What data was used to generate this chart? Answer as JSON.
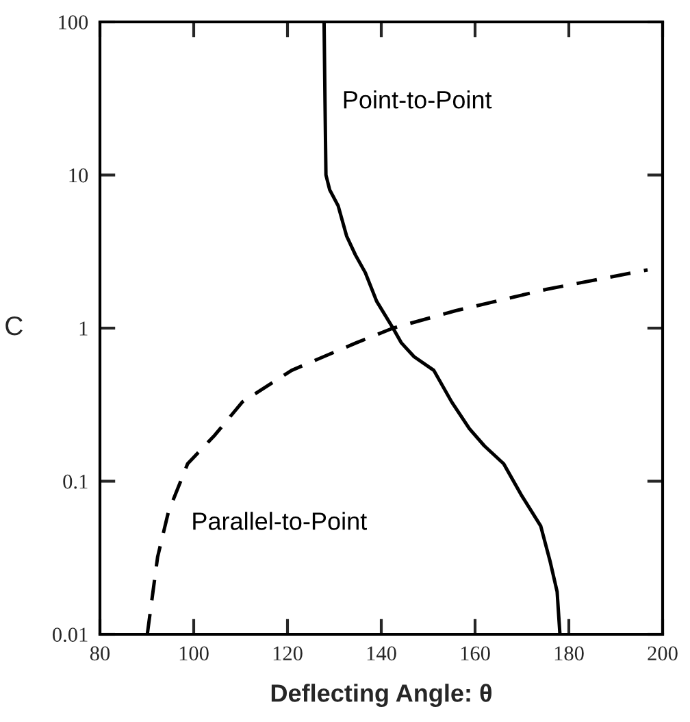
{
  "chart_data": {
    "type": "line",
    "xlabel": "Deflecting Angle: θ",
    "ylabel": "C",
    "log": "y",
    "xlim": [
      80,
      200
    ],
    "ylim": [
      0.01,
      100
    ],
    "xticks": [
      80,
      100,
      120,
      140,
      160,
      180,
      200
    ],
    "yticks": [
      0.01,
      0.1,
      1,
      10,
      100
    ],
    "grid": false,
    "legend": false,
    "series": [
      {
        "name": "Point-to-Point",
        "color": "#000000",
        "line_style": "solid",
        "x": [
          127.8,
          128,
          128.2,
          129,
          130.8,
          132.6,
          134.5,
          136.6,
          139,
          142.5,
          144.3,
          147,
          151.2,
          155,
          158.8,
          162,
          166.1,
          170,
          174,
          176,
          177.5,
          178.1
        ],
        "values": [
          100,
          30,
          10,
          8,
          6.3,
          4,
          3,
          2.3,
          1.5,
          1.0,
          0.8,
          0.65,
          0.53,
          0.33,
          0.22,
          0.17,
          0.13,
          0.08,
          0.051,
          0.03,
          0.019,
          0.01
        ]
      },
      {
        "name": "Parallel-to-Point",
        "color": "#000000",
        "line_style": "dashed",
        "x": [
          90.1,
          92.3,
          94.6,
          98.7,
          104.5,
          110.4,
          120.9,
          134.6,
          142.5,
          155.9,
          175.5,
          196.8
        ],
        "values": [
          0.01,
          0.032,
          0.063,
          0.13,
          0.2,
          0.33,
          0.53,
          0.8,
          1.0,
          1.3,
          1.8,
          2.4
        ]
      }
    ]
  }
}
